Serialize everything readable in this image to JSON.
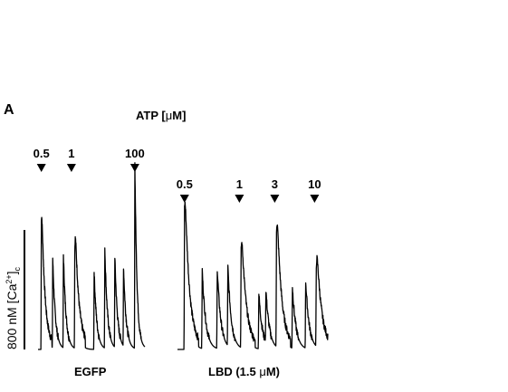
{
  "panel_label": "A",
  "treatment_title_prefix": "ATP [",
  "treatment_title_mu": "μ",
  "treatment_title_suffix": "M]",
  "y_axis_label": "800 nM [Ca",
  "y_axis_label_sup": "2+",
  "y_axis_label_close": "]",
  "y_axis_label_sub": "c",
  "colors": {
    "trace": "#000000",
    "background": "#ffffff"
  },
  "chart_data": [
    {
      "type": "line",
      "name": "EGFP",
      "caption": "EGFP",
      "x_unit": "s",
      "y_unit": "nM",
      "scale_bar_nM": 800,
      "baseline_nM": 0,
      "stimuli": [
        {
          "label": "0.5",
          "time": 5
        },
        {
          "label": "1",
          "time": 50
        },
        {
          "label": "100",
          "time": 145
        }
      ],
      "transients": [
        {
          "time": 5,
          "amplitude": 700,
          "width": 4,
          "tail": 210
        },
        {
          "time": 22,
          "amplitude": 480,
          "width": 4,
          "tail": 0
        },
        {
          "time": 38,
          "amplitude": 500,
          "width": 4,
          "tail": 0
        },
        {
          "time": 55,
          "amplitude": 500,
          "width": 4,
          "tail": 310
        },
        {
          "time": 84,
          "amplitude": 420,
          "width": 4,
          "tail": 0
        },
        {
          "time": 100,
          "amplitude": 540,
          "width": 4,
          "tail": 0
        },
        {
          "time": 115,
          "amplitude": 490,
          "width": 4,
          "tail": 0
        },
        {
          "time": 128,
          "amplitude": 430,
          "width": 4,
          "tail": 0
        },
        {
          "time": 145,
          "amplitude": 990,
          "width": 3,
          "tail": 40
        }
      ],
      "x_range": [
        0,
        160
      ],
      "y_range": [
        0,
        1000
      ]
    },
    {
      "type": "line",
      "name": "LBD",
      "caption_prefix": "LBD (1.5 ",
      "caption_mu": "μ",
      "caption_suffix": "M)",
      "x_unit": "s",
      "y_unit": "nM",
      "baseline_nM": 0,
      "stimuli": [
        {
          "label": "0.5",
          "time": 8
        },
        {
          "label": "1",
          "time": 70
        },
        {
          "label": "3",
          "time": 110
        },
        {
          "label": "10",
          "time": 155
        }
      ],
      "transients": [
        {
          "time": 8,
          "amplitude": 760,
          "width": 4,
          "tail": 260
        },
        {
          "time": 28,
          "amplitude": 420,
          "width": 4,
          "tail": 0
        },
        {
          "time": 45,
          "amplitude": 430,
          "width": 4,
          "tail": 0
        },
        {
          "time": 57,
          "amplitude": 420,
          "width": 4,
          "tail": 0
        },
        {
          "time": 72,
          "amplitude": 520,
          "width": 4,
          "tail": 230
        },
        {
          "time": 92,
          "amplitude": 300,
          "width": 4,
          "tail": 0
        },
        {
          "time": 100,
          "amplitude": 280,
          "width": 4,
          "tail": 0
        },
        {
          "time": 112,
          "amplitude": 620,
          "width": 4,
          "tail": 260
        },
        {
          "time": 130,
          "amplitude": 330,
          "width": 4,
          "tail": 0
        },
        {
          "time": 145,
          "amplitude": 360,
          "width": 4,
          "tail": 0
        },
        {
          "time": 157,
          "amplitude": 420,
          "width": 4,
          "tail": 220
        }
      ],
      "x_range": [
        0,
        170
      ],
      "y_range": [
        0,
        1000
      ]
    }
  ]
}
